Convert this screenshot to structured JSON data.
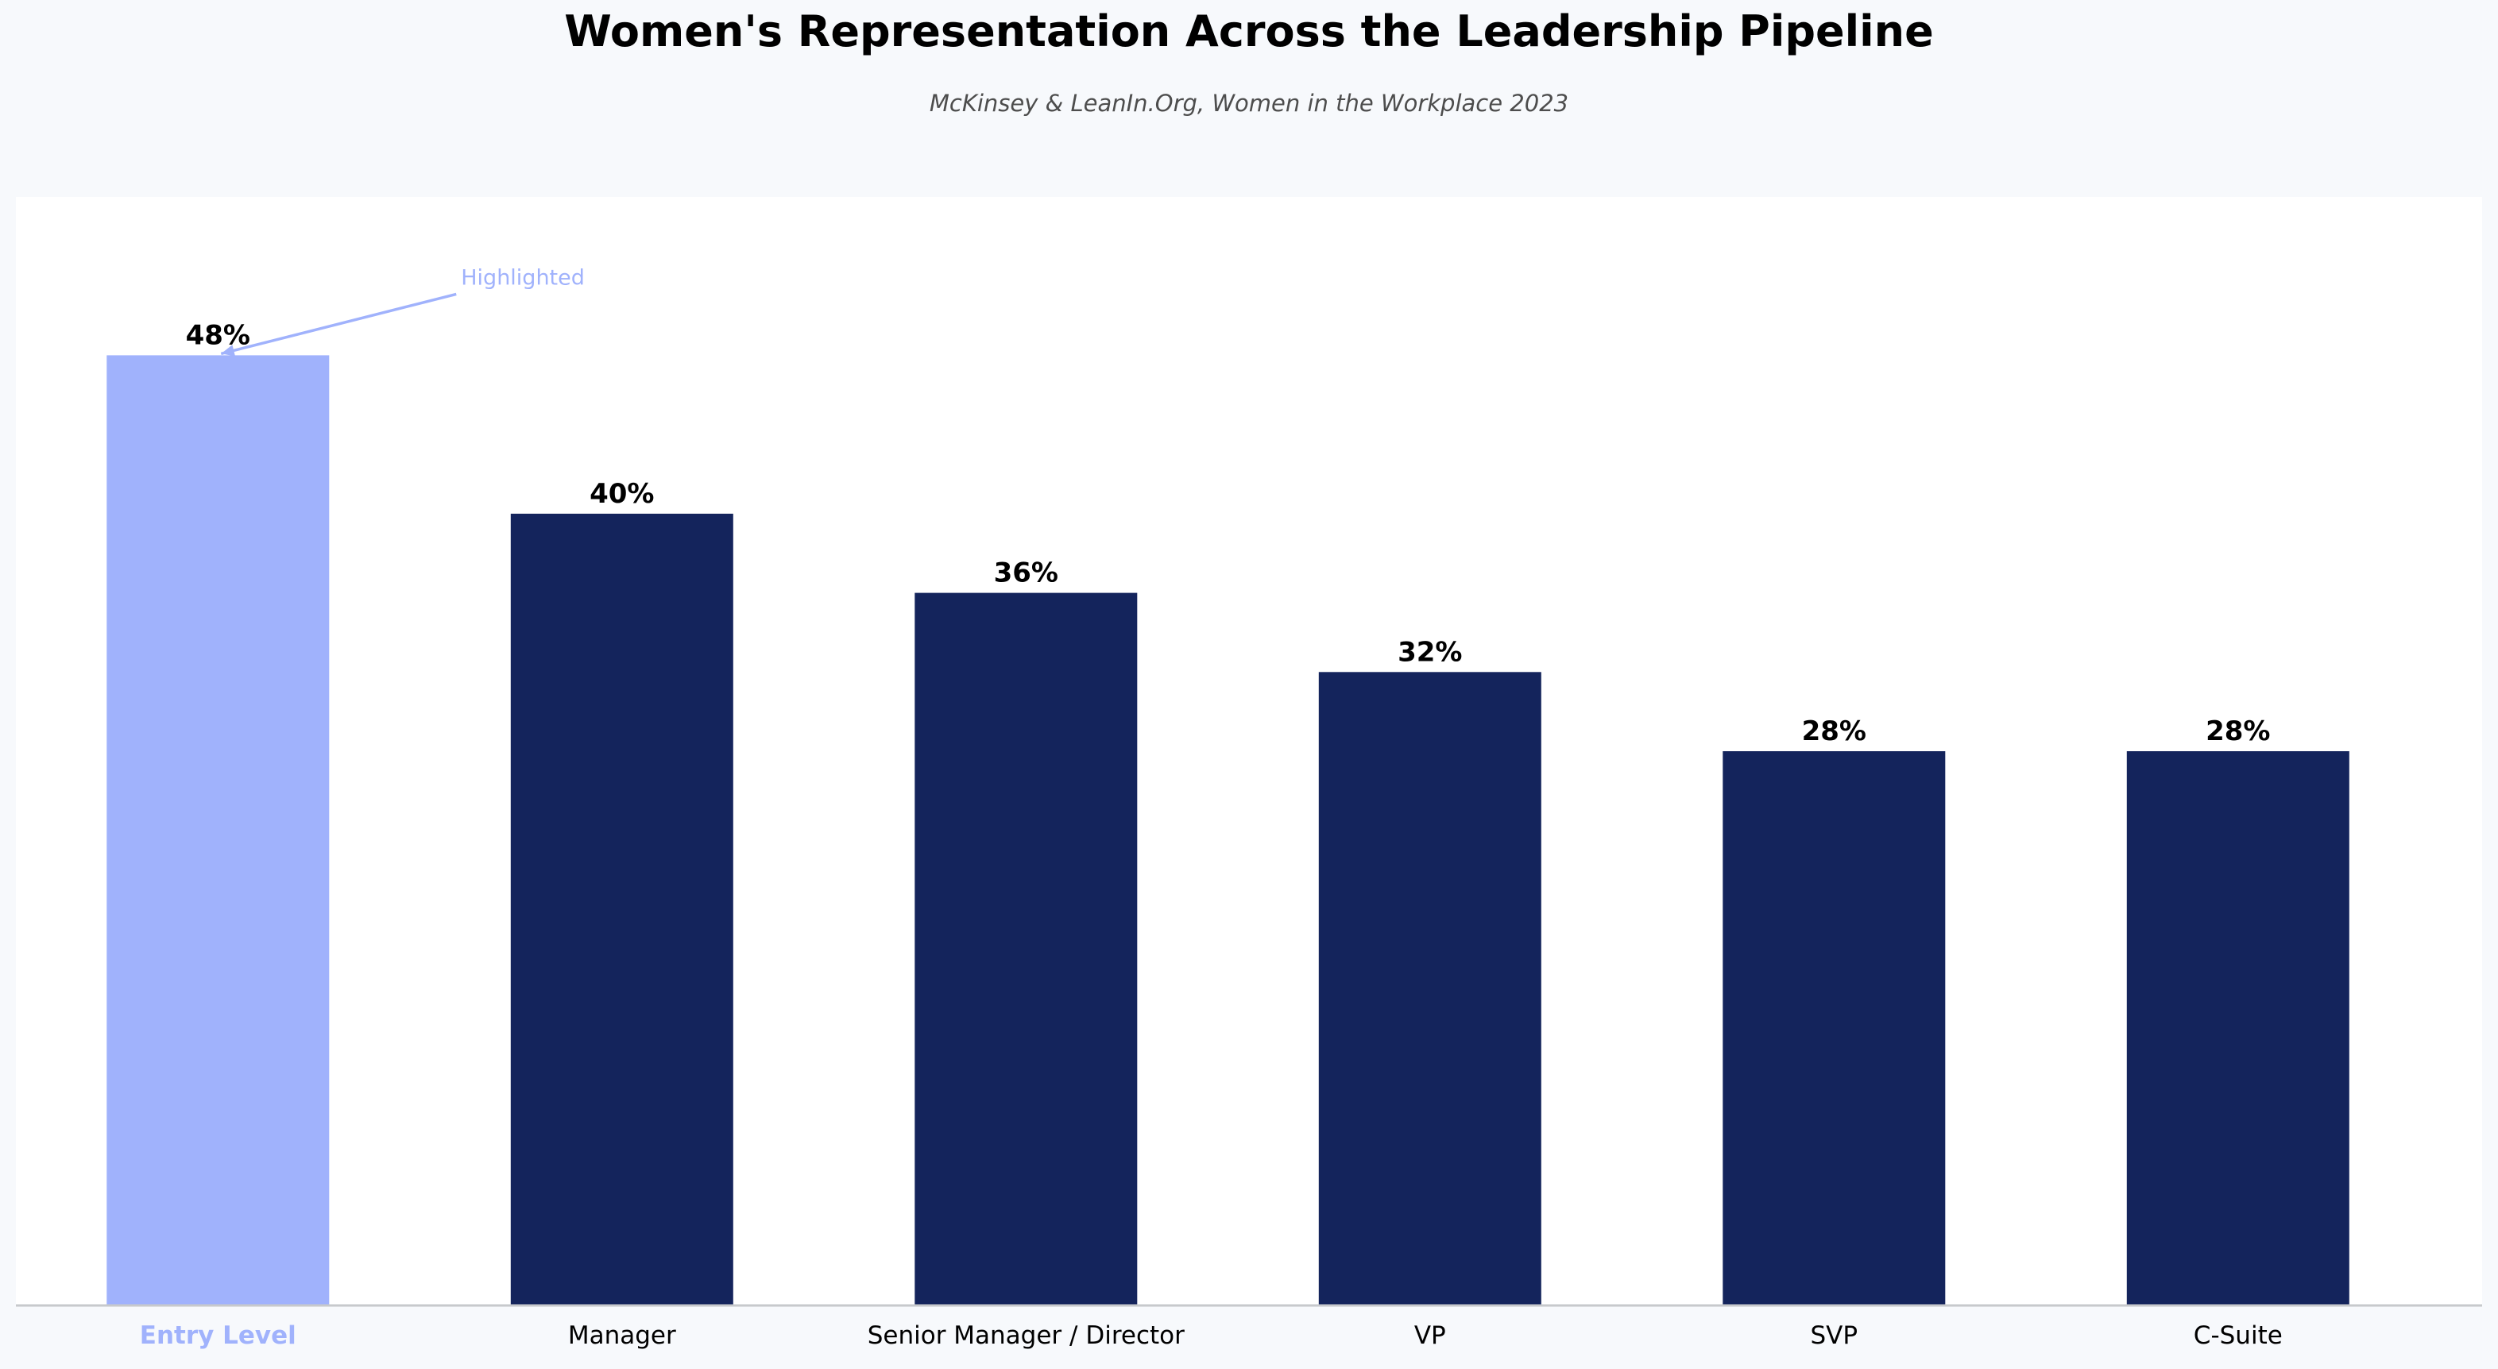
{
  "chart_data": {
    "type": "bar",
    "title": "Women's Representation Across the Leadership Pipeline",
    "subtitle": "McKinsey & LeanIn.Org, Women in the Workplace 2023",
    "categories": [
      "Entry Level",
      "Manager",
      "Senior Manager / Director",
      "VP",
      "SVP",
      "C-Suite"
    ],
    "values": [
      48,
      40,
      36,
      32,
      28,
      28
    ],
    "value_labels": [
      "48%",
      "40%",
      "36%",
      "32%",
      "28%",
      "28%"
    ],
    "unit": "%",
    "ylim": [
      0,
      56
    ],
    "grid": false,
    "highlight_index": 0,
    "annotation": "Highlighted",
    "colors": {
      "bar": "#14245c",
      "highlight": "#a0b2fc",
      "axis": "#c7c9cc",
      "subtitle": "#4d4d4d",
      "page_background": "#f7f9fc",
      "plot_background": "#ffffff"
    }
  }
}
